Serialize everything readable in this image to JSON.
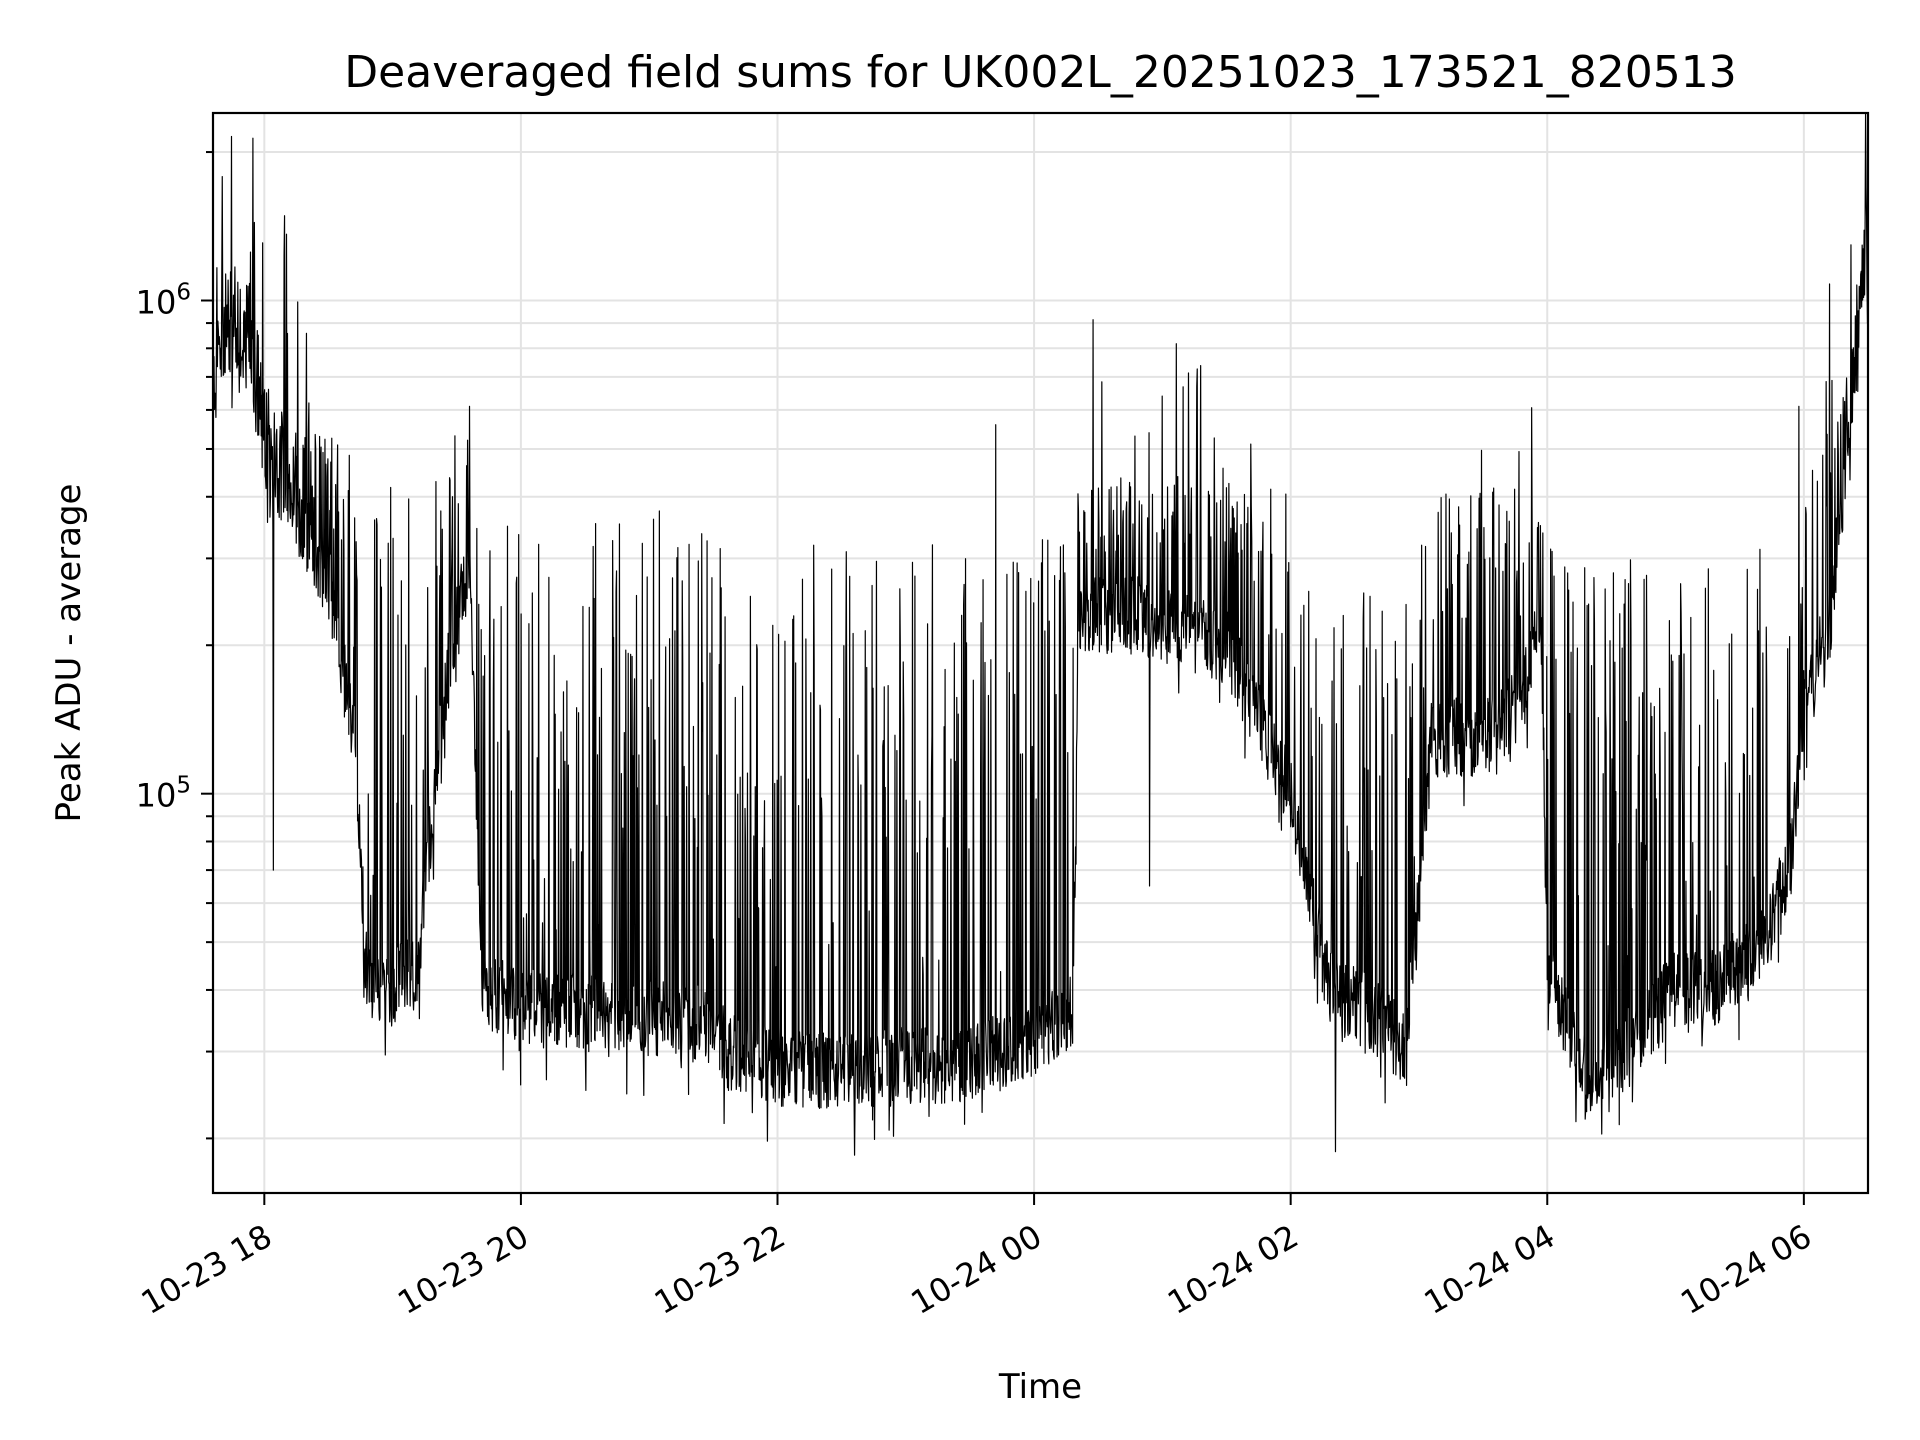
{
  "chart_data": {
    "type": "line",
    "title": "Deaveraged field sums for UK002L_20251023_173521_820513",
    "xlabel": "Time",
    "ylabel": "Peak ADU - average",
    "yscale": "log",
    "ylim": [
      15500,
      2400000
    ],
    "xlim_hours": [
      -0.4,
      12.5
    ],
    "x_ticks": [
      {
        "hour": 0,
        "label": "10-23 18"
      },
      {
        "hour": 2,
        "label": "10-23 20"
      },
      {
        "hour": 4,
        "label": "10-23 22"
      },
      {
        "hour": 6,
        "label": "10-24 00"
      },
      {
        "hour": 8,
        "label": "10-24 02"
      },
      {
        "hour": 10,
        "label": "10-24 04"
      },
      {
        "hour": 12,
        "label": "10-24 06"
      }
    ],
    "y_major_ticks": [
      {
        "value": 100000,
        "base": "10",
        "exp": "5"
      },
      {
        "value": 1000000,
        "base": "10",
        "exp": "6"
      }
    ],
    "y_minor_ticks": [
      20000,
      30000,
      40000,
      50000,
      60000,
      70000,
      80000,
      90000,
      200000,
      300000,
      400000,
      500000,
      600000,
      700000,
      800000,
      900000,
      2000000
    ],
    "grid": true,
    "line_color": "#000000",
    "baseline_anchors": [
      [
        -0.4,
        650000
      ],
      [
        -0.3,
        870000
      ],
      [
        -0.1,
        780000
      ],
      [
        0.0,
        500000
      ],
      [
        0.3,
        350000
      ],
      [
        0.5,
        270000
      ],
      [
        0.7,
        130000
      ],
      [
        0.8,
        42000
      ],
      [
        1.0,
        40000
      ],
      [
        1.2,
        45000
      ],
      [
        1.4,
        160000
      ],
      [
        1.6,
        300000
      ],
      [
        1.7,
        40000
      ],
      [
        2.0,
        37000
      ],
      [
        2.5,
        36000
      ],
      [
        3.0,
        35000
      ],
      [
        3.5,
        34000
      ],
      [
        3.6,
        30000
      ],
      [
        4.0,
        28000
      ],
      [
        4.5,
        27000
      ],
      [
        5.0,
        28000
      ],
      [
        5.5,
        28000
      ],
      [
        5.75,
        30000
      ],
      [
        6.0,
        32000
      ],
      [
        6.3,
        36000
      ],
      [
        6.35,
        230000
      ],
      [
        6.8,
        230000
      ],
      [
        7.5,
        200000
      ],
      [
        8.0,
        100000
      ],
      [
        8.3,
        40000
      ],
      [
        8.7,
        35000
      ],
      [
        8.9,
        30000
      ],
      [
        9.1,
        130000
      ],
      [
        9.5,
        130000
      ],
      [
        9.8,
        150000
      ],
      [
        9.95,
        250000
      ],
      [
        10.0,
        45000
      ],
      [
        10.3,
        27000
      ],
      [
        10.5,
        28000
      ],
      [
        11.0,
        40000
      ],
      [
        11.3,
        40000
      ],
      [
        11.7,
        50000
      ],
      [
        11.9,
        75000
      ],
      [
        12.0,
        150000
      ],
      [
        12.2,
        220000
      ],
      [
        12.3,
        400000
      ],
      [
        12.45,
        1100000
      ],
      [
        12.5,
        1300000
      ]
    ],
    "notable_points": [
      {
        "hour": 0.07,
        "value": 1850000
      },
      {
        "hour": 0.07,
        "value": 820000
      },
      {
        "hour": 0.07,
        "value": 70000
      },
      {
        "hour": 1.6,
        "value": 610000
      },
      {
        "hour": 5.7,
        "value": 560000
      },
      {
        "hour": 7.0,
        "value": 640000
      },
      {
        "hour": 6.9,
        "value": 65000
      },
      {
        "hour": 4.6,
        "value": 18500
      },
      {
        "hour": 8.35,
        "value": 18800
      },
      {
        "hour": 12.2,
        "value": 1080000
      },
      {
        "hour": 12.5,
        "value": 1450000
      }
    ]
  }
}
